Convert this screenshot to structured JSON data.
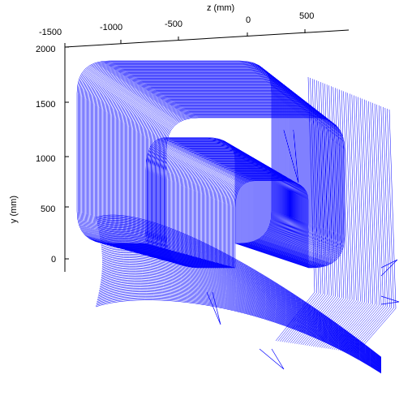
{
  "chart_data": {
    "type": "3d-wireframe",
    "title": "",
    "xlabel": "z (mm)",
    "ylabel": "y (mm)",
    "x_ticks": [
      "-1500",
      "-1000",
      "-500",
      "0",
      "500"
    ],
    "y_ticks": [
      "2000",
      "1500",
      "1000",
      "500",
      "0"
    ],
    "series": [
      {
        "values": []
      }
    ],
    "color": "#0000ff",
    "grid": false,
    "legend": "none"
  }
}
